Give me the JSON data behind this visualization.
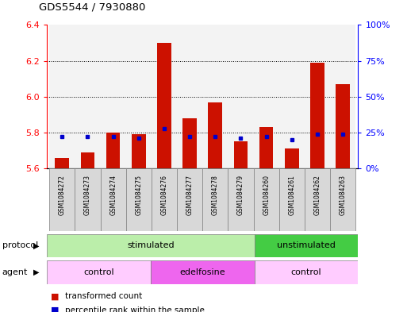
{
  "title": "GDS5544 / 7930880",
  "samples": [
    "GSM1084272",
    "GSM1084273",
    "GSM1084274",
    "GSM1084275",
    "GSM1084276",
    "GSM1084277",
    "GSM1084278",
    "GSM1084279",
    "GSM1084260",
    "GSM1084261",
    "GSM1084262",
    "GSM1084263"
  ],
  "red_values": [
    5.66,
    5.69,
    5.8,
    5.79,
    6.3,
    5.88,
    5.97,
    5.75,
    5.83,
    5.71,
    6.19,
    6.07
  ],
  "blue_values": [
    22,
    22,
    22,
    21,
    28,
    22,
    22,
    21,
    22,
    20,
    24,
    24
  ],
  "ylim_left": [
    5.6,
    6.4
  ],
  "ylim_right": [
    0,
    100
  ],
  "yticks_left": [
    5.6,
    5.8,
    6.0,
    6.2,
    6.4
  ],
  "yticks_right": [
    0,
    25,
    50,
    75,
    100
  ],
  "ytick_labels_right": [
    "0%",
    "25%",
    "50%",
    "75%",
    "100%"
  ],
  "protocol_groups": [
    {
      "label": "stimulated",
      "start": 0,
      "end": 7,
      "color": "#BBEEAA"
    },
    {
      "label": "unstimulated",
      "start": 8,
      "end": 11,
      "color": "#44CC44"
    }
  ],
  "agent_groups": [
    {
      "label": "control",
      "start": 0,
      "end": 3,
      "color": "#FFCCFF"
    },
    {
      "label": "edelfosine",
      "start": 4,
      "end": 7,
      "color": "#EE66EE"
    },
    {
      "label": "control",
      "start": 8,
      "end": 11,
      "color": "#FFCCFF"
    }
  ],
  "bar_color": "#CC1100",
  "dot_color": "#0000CC",
  "baseline": 5.6,
  "bar_width": 0.55,
  "bg_color": "#FFFFFF",
  "plot_bg": "#FFFFFF",
  "legend_items": [
    "transformed count",
    "percentile rank within the sample"
  ],
  "protocol_label": "protocol",
  "agent_label": "agent"
}
